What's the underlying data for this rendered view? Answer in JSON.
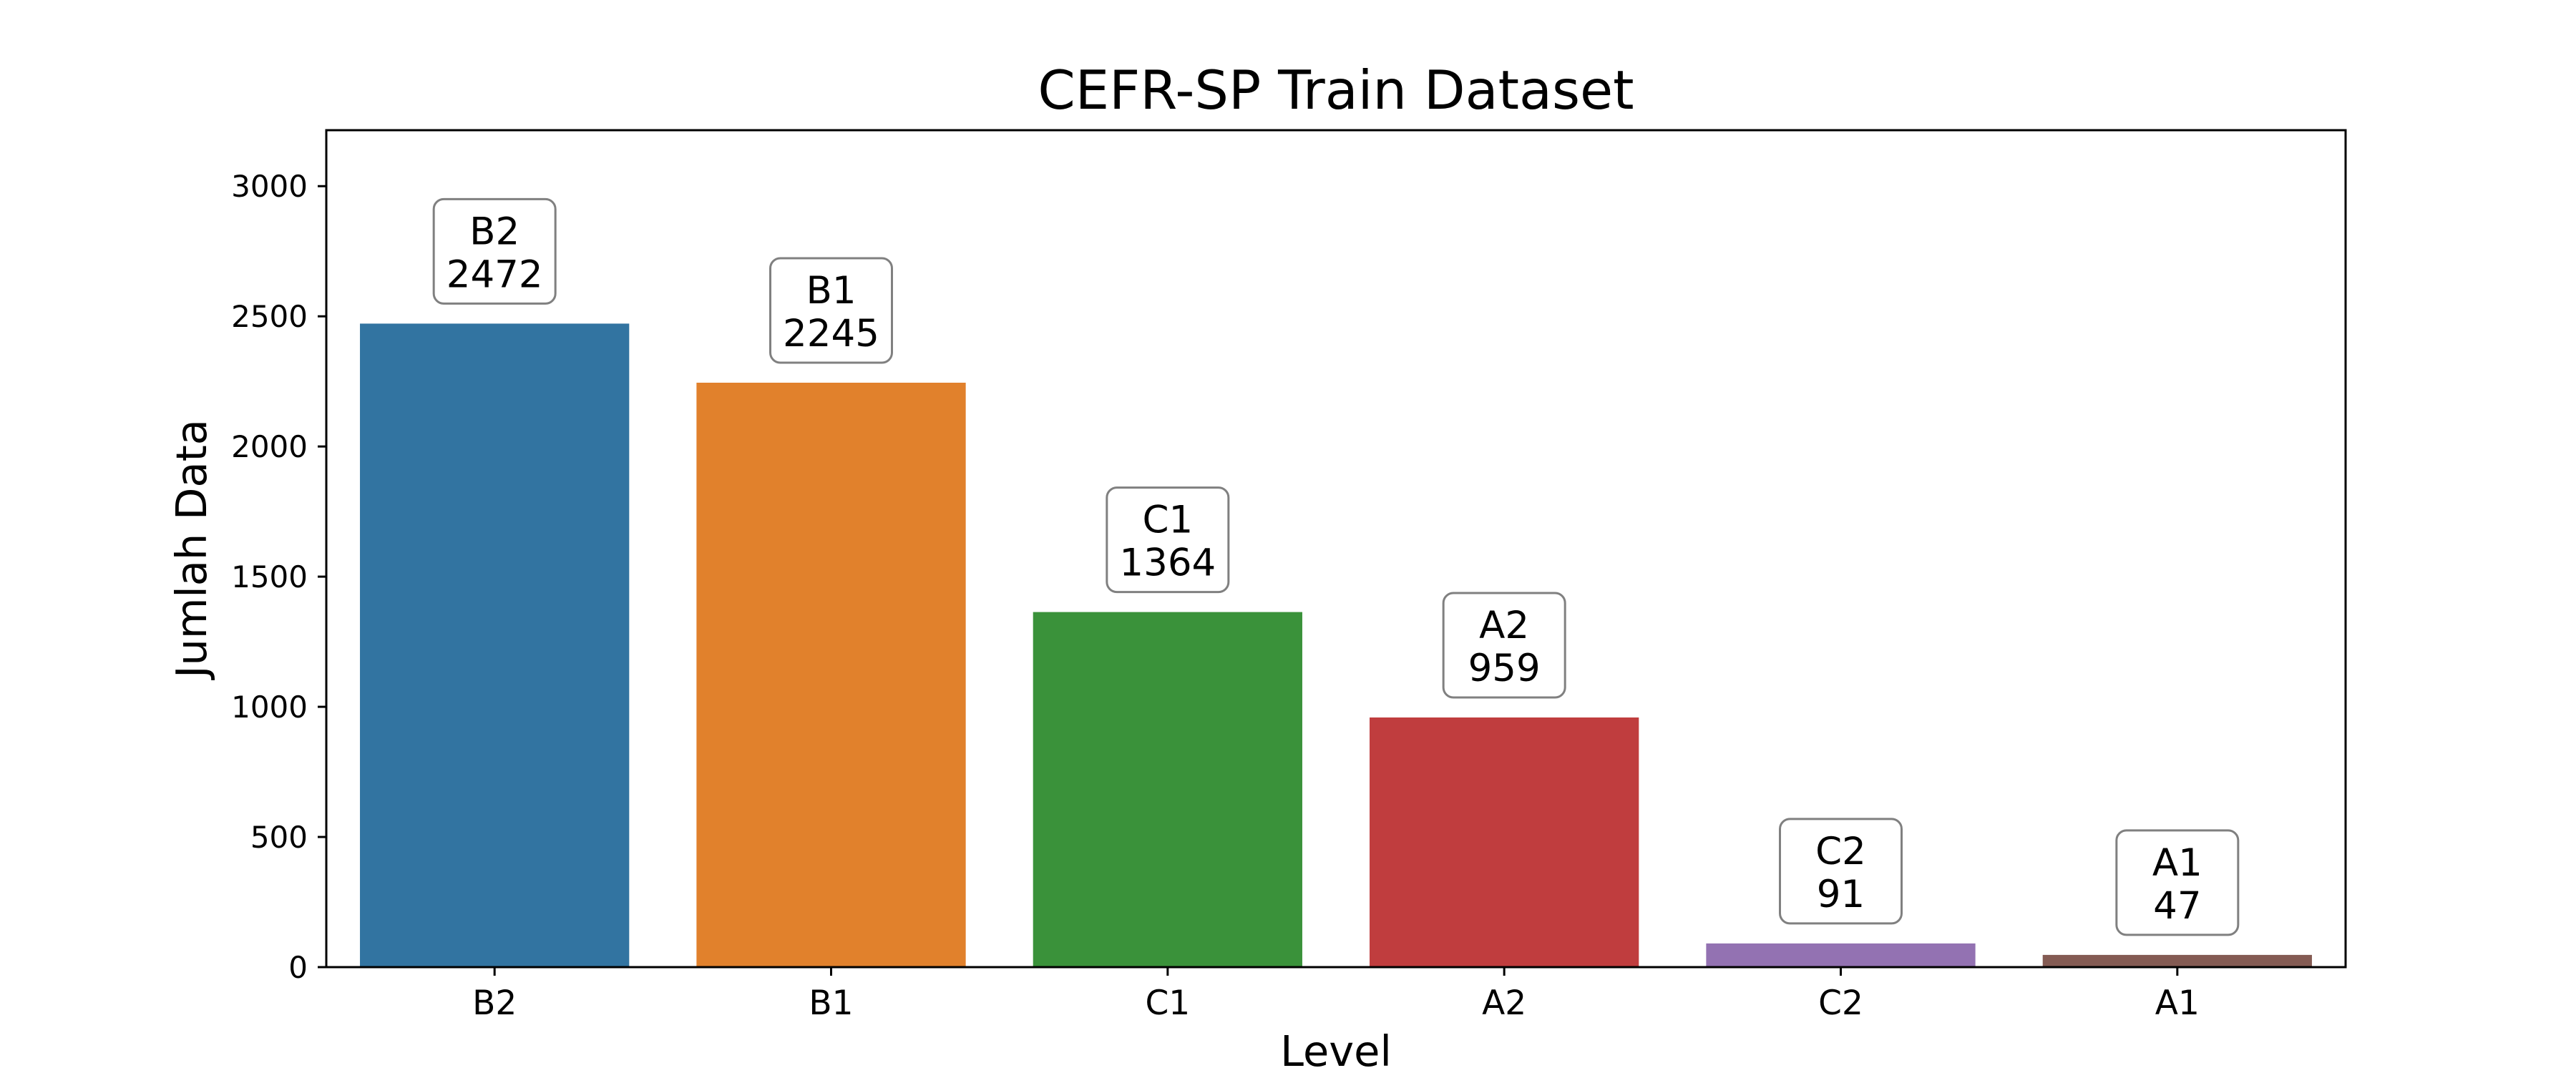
{
  "chart_data": {
    "type": "bar",
    "title": "CEFR-SP Train Dataset",
    "xlabel": "Level",
    "ylabel": "Jumlah Data",
    "categories": [
      "B2",
      "B1",
      "C1",
      "A2",
      "C2",
      "A1"
    ],
    "values": [
      2472,
      2245,
      1364,
      959,
      91,
      47
    ],
    "colors": [
      "#3274a1",
      "#e1812c",
      "#3a923a",
      "#c03d3e",
      "#9372b2",
      "#845b53"
    ],
    "yticks": [
      "0",
      "500",
      "1000",
      "1500",
      "2000",
      "2500",
      "3000"
    ],
    "ylim": [
      0,
      3215
    ],
    "grid": false,
    "legend": "none",
    "data_labels": [
      {
        "line1": "B2",
        "line2": "2472"
      },
      {
        "line1": "B1",
        "line2": "2245"
      },
      {
        "line1": "C1",
        "line2": "1364"
      },
      {
        "line1": "A2",
        "line2": "959"
      },
      {
        "line1": "C2",
        "line2": "91"
      },
      {
        "line1": "A1",
        "line2": "47"
      }
    ]
  }
}
